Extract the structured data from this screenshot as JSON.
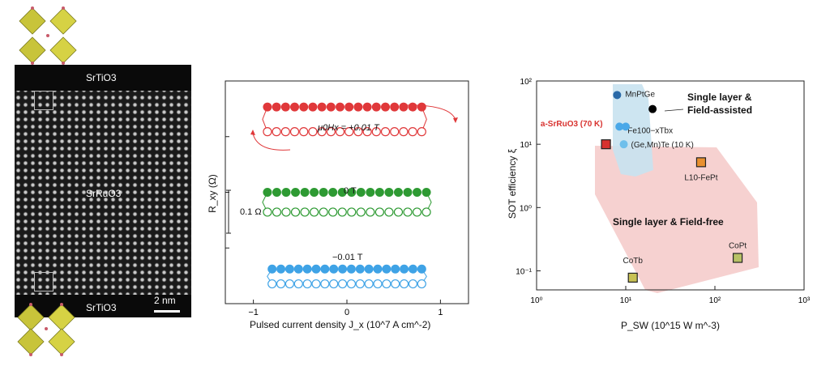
{
  "tem": {
    "top_label": "SrTiO3",
    "middle_label": "SrRuO3",
    "bottom_label": "SrTiO3",
    "scale_bar": "2 nm"
  },
  "panel_b": {
    "xlabel": "Pulsed current density J_x (10^7 A cm^-2)",
    "ylabel": "R_xy (Ω)",
    "scale_label": "0.1 Ω",
    "loop_labels": [
      "μ0Hx = +0.01 T",
      "0 T",
      "−0.01 T"
    ]
  },
  "panel_c": {
    "xlabel": "P_SW (10^15 W m^-3)",
    "ylabel": "SOT efficiency ξ",
    "region_labels": [
      "Single layer & Field-assisted",
      "Single layer & Field-free"
    ]
  },
  "chart_data": [
    {
      "type": "line",
      "xlabel": "Pulsed current density J_x (10^7 A cm^-2)",
      "ylabel": "R_xy (Ω)",
      "xlim": [
        -1.3,
        1.3
      ],
      "xticks": [
        -1,
        0,
        1
      ],
      "series": [
        {
          "name": "μ0Hx = +0.01 T",
          "color": "#e0383a",
          "x": [
            -0.85,
            -0.7,
            -0.5,
            -0.25,
            0,
            0.25,
            0.5,
            0.7,
            0.8
          ],
          "high": [
            0.345,
            0.345,
            0.345,
            0.345,
            0.345,
            0.345,
            0.345,
            0.345,
            0.345
          ],
          "low": [
            0.245,
            0.245,
            0.245,
            0.245,
            0.245,
            0.245,
            0.245,
            0.245,
            0.245
          ]
        },
        {
          "name": "0 T",
          "color": "#2e9a33",
          "x": [
            -0.85,
            -0.7,
            -0.5,
            -0.25,
            0,
            0.25,
            0.5,
            0.7,
            0.85
          ],
          "high": [
            0.0,
            0.0,
            0.0,
            0.0,
            0.0,
            0.0,
            0.0,
            0.0,
            0.0
          ],
          "low": [
            -0.08,
            -0.08,
            -0.08,
            -0.08,
            -0.08,
            -0.08,
            -0.08,
            -0.08,
            -0.08
          ]
        },
        {
          "name": "−0.01 T",
          "color": "#3fa3e6",
          "x": [
            -0.8,
            -0.6,
            -0.4,
            -0.2,
            0,
            0.2,
            0.4,
            0.6,
            0.8
          ],
          "high": [
            -0.31,
            -0.31,
            -0.31,
            -0.31,
            -0.31,
            -0.31,
            -0.31,
            -0.31,
            -0.31
          ],
          "low": [
            -0.37,
            -0.37,
            -0.37,
            -0.37,
            -0.37,
            -0.37,
            -0.37,
            -0.37,
            -0.37
          ]
        }
      ]
    },
    {
      "type": "scatter",
      "xlabel": "P_SW (10^15 W m^-3)",
      "ylabel": "SOT efficiency ξ",
      "x_scale": "log",
      "y_scale": "log",
      "xlim": [
        1,
        1000
      ],
      "ylim": [
        0.05,
        100
      ],
      "xticks": [
        "10^0",
        "10^1",
        "10^2",
        "10^3"
      ],
      "yticks": [
        "10^-1",
        "10^0",
        "10^1",
        "10^2"
      ],
      "points": [
        {
          "label": "MnPtGe",
          "x": 8,
          "y": 60,
          "marker": "circle",
          "color": "#2a6aa8"
        },
        {
          "label": "",
          "x": 20,
          "y": 36,
          "marker": "circle",
          "color": "#000000"
        },
        {
          "label": "Fe100−xTbx",
          "x": 8.5,
          "y": 19,
          "marker": "circle",
          "color": "#4aa8e8"
        },
        {
          "label": "",
          "x": 10,
          "y": 19,
          "marker": "circle",
          "color": "#4aa8e8"
        },
        {
          "label": "(Ge,Mn)Te (10 K)",
          "x": 9.5,
          "y": 10,
          "marker": "circle",
          "color": "#6fbfeb"
        },
        {
          "label": "a-SrRuO3 (70 K)",
          "x": 6,
          "y": 10,
          "marker": "square",
          "color": "#d8322f"
        },
        {
          "label": "L10-FePt",
          "x": 70,
          "y": 5.2,
          "marker": "square",
          "color": "#e8902f"
        },
        {
          "label": "CoPt",
          "x": 180,
          "y": 0.16,
          "marker": "square",
          "color": "#b8c266"
        },
        {
          "label": "CoTb",
          "x": 12,
          "y": 0.078,
          "marker": "square",
          "color": "#c8c254"
        }
      ]
    }
  ]
}
